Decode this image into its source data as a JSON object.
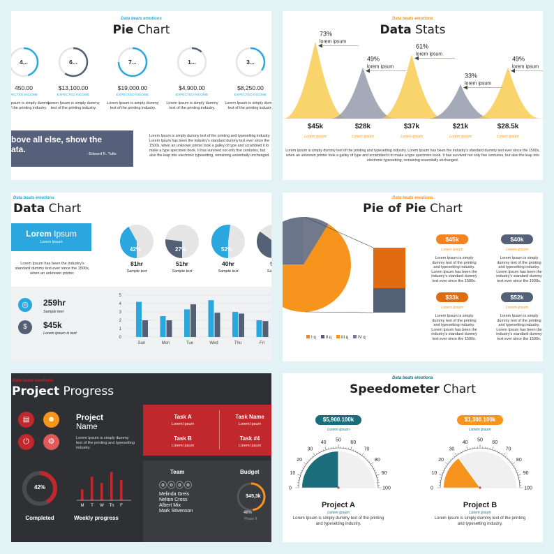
{
  "tagline": "Data beats emotions",
  "pie_chart": {
    "title_bold": "Pie",
    "title_rest": " Chart",
    "items": [
      {
        "inner": "4...",
        "value": "450.00",
        "caption": "PECTED INCOME",
        "desc": "Lorem Ipsum is simply dummy text of the printing industry.",
        "fraction": 0.45,
        "color": "#29a7de"
      },
      {
        "inner": "6...",
        "value": "$13,100.00",
        "caption": "EXPECTED INCOME",
        "desc": "Lorem Ipsum is simply dummy text of the printing industry.",
        "fraction": 0.6,
        "color": "#536075"
      },
      {
        "inner": "7...",
        "value": "$19,000.00",
        "caption": "EXPECTED INCOME",
        "desc": "Lorem Ipsum is simply dummy text of the printing industry.",
        "fraction": 0.75,
        "color": "#29a7de"
      },
      {
        "inner": "1...",
        "value": "$4,900.00",
        "caption": "EXPECTED INCOME",
        "desc": "Lorem Ipsum is simply dummy text of the printing industry.",
        "fraction": 0.12,
        "color": "#536075"
      },
      {
        "inner": "3...",
        "value": "$8,250.00",
        "caption": "EXPECTED INCOME",
        "desc": "Lorem Ipsum is simply dummy text of the printing industry.",
        "fraction": 0.35,
        "color": "#29a7de"
      }
    ],
    "quote_line1": "bove all else, show the",
    "quote_line2": "ata.",
    "quote_author": "- Edward R. Tufte",
    "quote_body": "Lorem Ipsum is simply dummy text of the printing and typesetting industry. Lorem Ipsum has been the industry's standard dummy text ever since the 1500s, when an unknown printer took a galley of type and scrambled it to make a type specimen book. It has survived not only five centuries, but also the leap into electronic typesetting, remaining essentially unchanged."
  },
  "data_stats": {
    "title_bold": "Data",
    "title_rest": " Stats",
    "peaks": [
      {
        "pct": "73%",
        "label": "lorem ipsum",
        "value": "$45k",
        "caption": "Lorem ipsum",
        "height": 0.73,
        "color": "#f7c948"
      },
      {
        "pct": "49%",
        "label": "lorem ipsum",
        "value": "$28k",
        "caption": "Lorem ipsum",
        "height": 0.49,
        "color": "#8e95a6"
      },
      {
        "pct": "61%",
        "label": "lorem ipsum",
        "value": "$37k",
        "caption": "Lorem ipsum",
        "height": 0.61,
        "color": "#f7c948"
      },
      {
        "pct": "33%",
        "label": "lorem ipsum",
        "value": "$21k",
        "caption": "Lorem ipsum",
        "height": 0.33,
        "color": "#8e95a6"
      },
      {
        "pct": "49%",
        "label": "lorem ipsum",
        "value": "$28.5k",
        "caption": "Lorem ipsum",
        "height": 0.49,
        "color": "#f7c948"
      }
    ],
    "body": "Lorem Ipsum is simply dummy text of the printing and typesetting industry. Lorem Ipsum has been the industry's standard dummy text ever since the 1500s, when an unknown printer took a galley of type and scrambled it to make a type specimen book. It has survived not only five centuries, but also the leap into electronic typesetting, remaining essentially unchanged."
  },
  "data_chart": {
    "title_bold": "Data",
    "title_rest": " Chart",
    "banner_bold": "Lorem",
    "banner_rest": " Ipsum",
    "banner_sub": "Lorem Ipsum",
    "banner_desc": "Lorem Ipsum has been the industry's standard dummy text ever since the 1500s, when an unknown printer.",
    "pies": [
      {
        "pct": "42%",
        "hours": "81hr",
        "caption": "Sample text",
        "fraction": 0.42,
        "color": "#29a7de"
      },
      {
        "pct": "27%",
        "hours": "51hr",
        "caption": "Sample text",
        "fraction": 0.27,
        "color": "#536075"
      },
      {
        "pct": "52%",
        "hours": "40hr",
        "caption": "Sample text",
        "fraction": 0.52,
        "color": "#29a7de"
      },
      {
        "pct": "",
        "hours": "93",
        "caption": "Sample",
        "fraction": 0.35,
        "color": "#536075"
      }
    ],
    "stat1_value": "259hr",
    "stat1_caption": "Sample text",
    "stat2_value": "$45k",
    "stat2_caption": "Lorem ipsum is text",
    "colors": {
      "blue": "#29a7de",
      "gray": "#536075"
    }
  },
  "pie_of_pie": {
    "title_bold": "Pie of Pie",
    "title_rest": " Chart",
    "cards": [
      {
        "value": "$45k",
        "caption": "Lorem ipsum",
        "desc": "Lorem Ipsum is simply dummy text of the printing and typesetting industry. Lorem Ipsum has been the industry's standard dummy text ever since the 1500s.",
        "color": "#f58220"
      },
      {
        "value": "$40k",
        "caption": "Lorem ipsum",
        "desc": "Lorem Ipsum is simply dummy text of the printing and typesetting industry. Lorem Ipsum has been the industry's standard dummy text ever since the 1500s.",
        "color": "#536075"
      },
      {
        "value": "$33k",
        "caption": "Lorem ipsum",
        "desc": "Lorem Ipsum is simply dummy text of the printing and typesetting industry. Lorem Ipsum has been the industry's standard dummy text ever since the 1500s.",
        "color": "#e06b10"
      },
      {
        "value": "$52k",
        "caption": "Lorem ipsum",
        "desc": "Lorem Ipsum is simply dummy text of the printing and typesetting industry. Lorem Ipsum has been the industry's standard dummy text ever since the 1500s.",
        "color": "#536075"
      }
    ],
    "legend": [
      "I q",
      "II q",
      "III q",
      "IV q"
    ],
    "legend_colors": [
      "#f58220",
      "#536075",
      "#f7941d",
      "#707a8c"
    ]
  },
  "project_progress": {
    "tagline": "Data beats emotions",
    "title_bold": "Project",
    "title_rest": " Progress",
    "project_name_bold": "Project",
    "project_name_rest": "Name",
    "project_desc": "Lorem Ipsum is simply dummy text of the printing and typesetting industry.",
    "tasks": [
      {
        "name": "Task A",
        "sub": "Lorem Ipsum"
      },
      {
        "name": "Task Name",
        "sub": "Lorem Ipsum"
      },
      {
        "name": "Task B",
        "sub": "Lorem Ipsum"
      },
      {
        "name": "Task #4",
        "sub": "Lorem Ipsum"
      }
    ],
    "donut_pct": "42%",
    "donut_fraction": 0.42,
    "completed_label": "Completed",
    "weekly_label": "Weekly progress",
    "week_days": [
      "M",
      "T",
      "W",
      "Th",
      "F"
    ],
    "week_values": [
      0.35,
      0.75,
      0.55,
      0.9,
      0.65
    ],
    "team_label": "Team",
    "team_members": [
      "Melinda Greis",
      "Nelton Cross",
      "Albert Mix",
      "Mark Stivenson"
    ],
    "budget_label": "Budget",
    "budget_value": "$45,3k",
    "budget_pct": "48%",
    "budget_phase": "Phase II",
    "budget_fraction": 0.48,
    "colors": {
      "red": "#c0282d",
      "orange": "#f7941d",
      "bg": "#2f3033"
    }
  },
  "speedometer": {
    "title_bold": "Speedometer",
    "title_rest": " Chart",
    "ticks": [
      "0",
      "10",
      "20",
      "30",
      "40",
      "50",
      "60",
      "70",
      "80",
      "90",
      "100"
    ],
    "gauges": [
      {
        "badge": "$5,900.100k",
        "badge_caption": "Lorem ipsum",
        "value": 50,
        "name": "Project A",
        "name_caption": "Lorem ipsum",
        "desc": "Lorem Ipsum is simply dummy text of the printing and typesetting industry.",
        "color": "#1b6d7c"
      },
      {
        "badge": "$1,300.100k",
        "badge_caption": "Lorem ipsum",
        "value": 30,
        "name": "Project B",
        "name_caption": "Lorem ipsum",
        "desc": "Lorem Ipsum is simply dummy text of the printing and typesetting industry.",
        "color": "#f7941d"
      }
    ]
  },
  "chart_data": [
    {
      "type": "pie",
      "title": "Pie Chart",
      "categories": [
        "4...",
        "6...",
        "7...",
        "1...",
        "3..."
      ],
      "values": [
        450,
        13100,
        19000,
        4900,
        8250
      ]
    },
    {
      "type": "area",
      "title": "Data Stats",
      "categories": [
        "$45k",
        "$28k",
        "$37k",
        "$21k",
        "$28.5k"
      ],
      "values": [
        73,
        49,
        61,
        33,
        49
      ]
    },
    {
      "type": "bar",
      "title": "Data Chart",
      "categories": [
        "Sun",
        "Mon",
        "Tue",
        "Wed",
        "Thu",
        "Fri"
      ],
      "ylim": [
        0,
        5
      ],
      "series": [
        {
          "values": [
            4.2,
            2.5,
            3.3,
            4.4,
            3.0,
            2.0
          ]
        },
        {
          "values": [
            2.0,
            2.0,
            3.9,
            2.9,
            2.8,
            1.9
          ]
        }
      ]
    },
    {
      "type": "pie",
      "title": "Pie of Pie Chart",
      "categories": [
        "I q",
        "II q",
        "III q",
        "IV q"
      ],
      "values": [
        45,
        40,
        33,
        52
      ]
    },
    {
      "type": "bar",
      "title": "Weekly progress",
      "categories": [
        "M",
        "T",
        "W",
        "Th",
        "F"
      ],
      "values": [
        0.35,
        0.75,
        0.55,
        0.9,
        0.65
      ]
    },
    {
      "type": "pie",
      "title": "Speedometer Chart",
      "categories": [
        "Project A",
        "Project B"
      ],
      "values": [
        50,
        30
      ],
      "ylim": [
        0,
        100
      ]
    }
  ]
}
